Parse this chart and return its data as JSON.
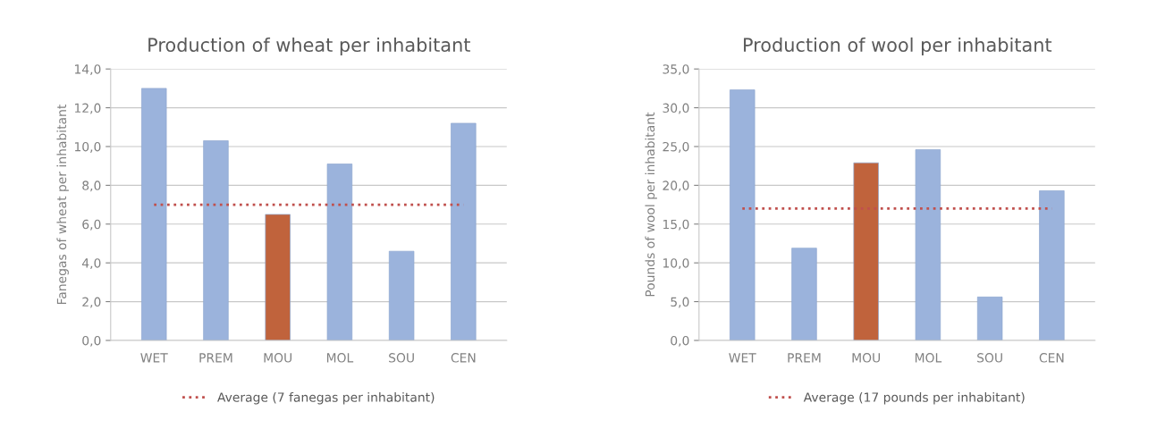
{
  "chart_data": [
    {
      "type": "bar",
      "title": "Production of wheat per inhabitant",
      "ylabel": "Fanegas of wheat per inhabitant",
      "categories": [
        "WET",
        "PREM",
        "MOU",
        "MOL",
        "SOU",
        "CEN"
      ],
      "values": [
        13.0,
        10.3,
        6.5,
        9.1,
        4.6,
        11.2
      ],
      "colors": [
        "#9bb3dc",
        "#9bb3dc",
        "#c0633c",
        "#9bb3dc",
        "#9bb3dc",
        "#9bb3dc"
      ],
      "ylim": [
        0,
        14
      ],
      "yticks": [
        {
          "value": 0,
          "label": "0,0"
        },
        {
          "value": 2,
          "label": "2,0"
        },
        {
          "value": 4,
          "label": "4,0"
        },
        {
          "value": 6,
          "label": "6,0"
        },
        {
          "value": 8,
          "label": "8,0"
        },
        {
          "value": 10,
          "label": "10,0"
        },
        {
          "value": 12,
          "label": "12,0"
        },
        {
          "value": 14,
          "label": "14,0"
        }
      ],
      "ref_lines": [
        {
          "axis": "y",
          "value": 7,
          "label": "Average (7 fanegas per inhabitant)",
          "color": "#c0504d",
          "line_style": "dotted"
        }
      ],
      "grid": "y",
      "legend": "bottom"
    },
    {
      "type": "bar",
      "title": "Production of wool per inhabitant",
      "ylabel": "Pounds of wool per inhabitant",
      "categories": [
        "WET",
        "PREM",
        "MOU",
        "MOL",
        "SOU",
        "CEN"
      ],
      "values": [
        32.3,
        11.9,
        22.9,
        24.6,
        5.6,
        19.3
      ],
      "colors": [
        "#9bb3dc",
        "#9bb3dc",
        "#c0633c",
        "#9bb3dc",
        "#9bb3dc",
        "#9bb3dc"
      ],
      "ylim": [
        0,
        35
      ],
      "yticks": [
        {
          "value": 0,
          "label": "0,0"
        },
        {
          "value": 5,
          "label": "5,0"
        },
        {
          "value": 10,
          "label": "10,0"
        },
        {
          "value": 15,
          "label": "15,0"
        },
        {
          "value": 20,
          "label": "20,0"
        },
        {
          "value": 25,
          "label": "25,0"
        },
        {
          "value": 30,
          "label": "30,0"
        },
        {
          "value": 35,
          "label": "35,0"
        }
      ],
      "ref_lines": [
        {
          "axis": "y",
          "value": 17,
          "label": "Average (17 pounds per inhabitant)",
          "color": "#c0504d",
          "line_style": "dotted"
        }
      ],
      "grid": "y",
      "legend": "bottom"
    }
  ]
}
